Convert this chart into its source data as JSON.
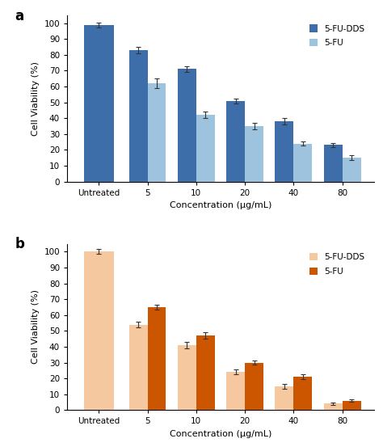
{
  "panel_a": {
    "categories": [
      "Untreated",
      "5",
      "10",
      "20",
      "40",
      "80"
    ],
    "dds_values": [
      99,
      83,
      71,
      51,
      38,
      23
    ],
    "fu_values": [
      null,
      62,
      42,
      35,
      24,
      15
    ],
    "dds_errors": [
      1.5,
      2,
      2,
      1.5,
      2,
      1.5
    ],
    "fu_errors": [
      null,
      3,
      2,
      2,
      1.5,
      1.5
    ],
    "dds_color": "#3d6eaa",
    "fu_color": "#9dc3df",
    "ylabel": "Cell Viability (%)",
    "xlabel": "Concentration (μg/mL)",
    "ylim": [
      0,
      105
    ],
    "yticks": [
      0,
      10,
      20,
      30,
      40,
      50,
      60,
      70,
      80,
      90,
      100
    ],
    "label": "a",
    "legend_labels": [
      "5-FU-DDS",
      "5-FU"
    ]
  },
  "panel_b": {
    "categories": [
      "Untreated",
      "5",
      "10",
      "20",
      "40",
      "80"
    ],
    "dds_values": [
      100,
      54,
      41,
      24,
      15,
      4
    ],
    "fu_values": [
      null,
      65,
      47,
      30,
      21,
      6
    ],
    "dds_errors": [
      1.5,
      2,
      2,
      1.5,
      1.5,
      0.8
    ],
    "fu_errors": [
      null,
      1.5,
      2,
      1.5,
      1.5,
      0.8
    ],
    "dds_color": "#f5c8a0",
    "fu_color": "#cc5500",
    "ylabel": "Cell Viability (%)",
    "xlabel": "Concentration (μg/mL)",
    "ylim": [
      0,
      105
    ],
    "yticks": [
      0,
      10,
      20,
      30,
      40,
      50,
      60,
      70,
      80,
      90,
      100
    ],
    "label": "b",
    "legend_labels": [
      "5-FU-DDS",
      "5-FU"
    ]
  }
}
